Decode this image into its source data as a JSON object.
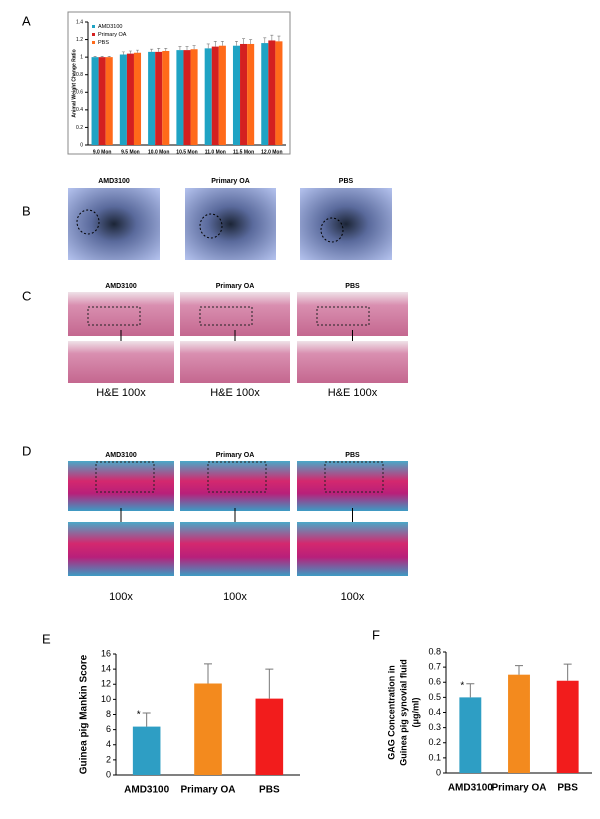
{
  "panel_labels": [
    "A",
    "B",
    "C",
    "D",
    "E",
    "F"
  ],
  "chart_data": [
    {
      "type": "bar",
      "ylabel": "Animal Weight Change Ratio",
      "categories": [
        "9.0 Mon",
        "9.5 Mon",
        "10.0 Mon",
        "10.5 Mon",
        "11.0 Mon",
        "11.5 Mon",
        "12.0 Mon"
      ],
      "series": [
        {
          "name": "AMD3100",
          "color": "#1fa3c4",
          "values": [
            1,
            1.03,
            1.06,
            1.08,
            1.1,
            1.13,
            1.16
          ],
          "errors": [
            0.01,
            0.03,
            0.03,
            0.04,
            0.05,
            0.05,
            0.06
          ]
        },
        {
          "name": "Primary OA",
          "color": "#d42020",
          "values": [
            1,
            1.04,
            1.06,
            1.08,
            1.12,
            1.15,
            1.19
          ],
          "errors": [
            0.01,
            0.03,
            0.04,
            0.04,
            0.06,
            0.06,
            0.06
          ]
        },
        {
          "name": "PBS",
          "color": "#ff6a1a",
          "values": [
            1,
            1.05,
            1.07,
            1.09,
            1.13,
            1.15,
            1.18
          ],
          "errors": [
            0.01,
            0.03,
            0.03,
            0.04,
            0.05,
            0.05,
            0.06
          ]
        }
      ],
      "ylim": [
        0,
        1.4
      ],
      "yticks": [
        0,
        0.2,
        0.4,
        0.6,
        0.8,
        1,
        1.2,
        1.4
      ],
      "legend": "upper-left"
    },
    {
      "type": "bar",
      "ylabel": "Guinea pig Mankin Score",
      "categories": [
        "AMD3100",
        "Primary OA",
        "PBS"
      ],
      "values": [
        6.4,
        12.1,
        10.1
      ],
      "errors": [
        1.8,
        2.6,
        3.9
      ],
      "colors": [
        "#2e9ec4",
        "#f38a1e",
        "#f21c1c"
      ],
      "ylim": [
        0,
        16
      ],
      "yticks": [
        0,
        2,
        4,
        6,
        8,
        10,
        12,
        14,
        16
      ],
      "annotation": "*"
    },
    {
      "type": "bar",
      "ylabel": [
        "GAG Concentration in",
        "Guinea pig synovial fluid",
        "(μg/ml)"
      ],
      "categories": [
        "AMD3100",
        "Primary OA",
        "PBS"
      ],
      "values": [
        0.5,
        0.65,
        0.61
      ],
      "errors": [
        0.09,
        0.06,
        0.11
      ],
      "colors": [
        "#2e9ec4",
        "#f38a1e",
        "#f21c1c"
      ],
      "ylim": [
        0,
        0.8
      ],
      "yticks": [
        0,
        0.1,
        0.2,
        0.3,
        0.4,
        0.5,
        0.6,
        0.7,
        0.8
      ],
      "annotation": "*"
    }
  ],
  "panel_b": {
    "labels": [
      "AMD3100",
      "Primary OA",
      "PBS"
    ]
  },
  "panel_c": {
    "labels": [
      "AMD3100",
      "Primary OA",
      "PBS"
    ],
    "captions": [
      "H&E 100x",
      "H&E 100x",
      "H&E 100x"
    ]
  },
  "panel_d": {
    "labels": [
      "AMD3100",
      "Primary OA",
      "PBS"
    ],
    "captions": [
      "100x",
      "100x",
      "100x"
    ]
  }
}
